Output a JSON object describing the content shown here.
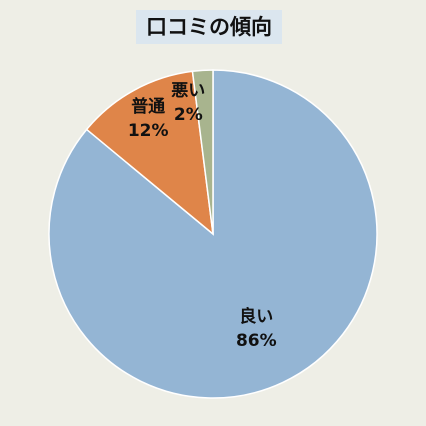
{
  "chart_data": {
    "type": "pie",
    "title": "口コミの傾向",
    "slices": [
      {
        "label": "良い",
        "value": 86,
        "value_label": "86%",
        "color": "#94b5d4"
      },
      {
        "label": "普通",
        "value": 12,
        "value_label": "12%",
        "color": "#df8549"
      },
      {
        "label": "悪い",
        "value": 2,
        "value_label": "2%",
        "color": "#a8b48e"
      }
    ],
    "start": "top",
    "direction": "clockwise",
    "legend": "none",
    "background": "#eeeee6",
    "title_background": "#dbe6ef"
  }
}
